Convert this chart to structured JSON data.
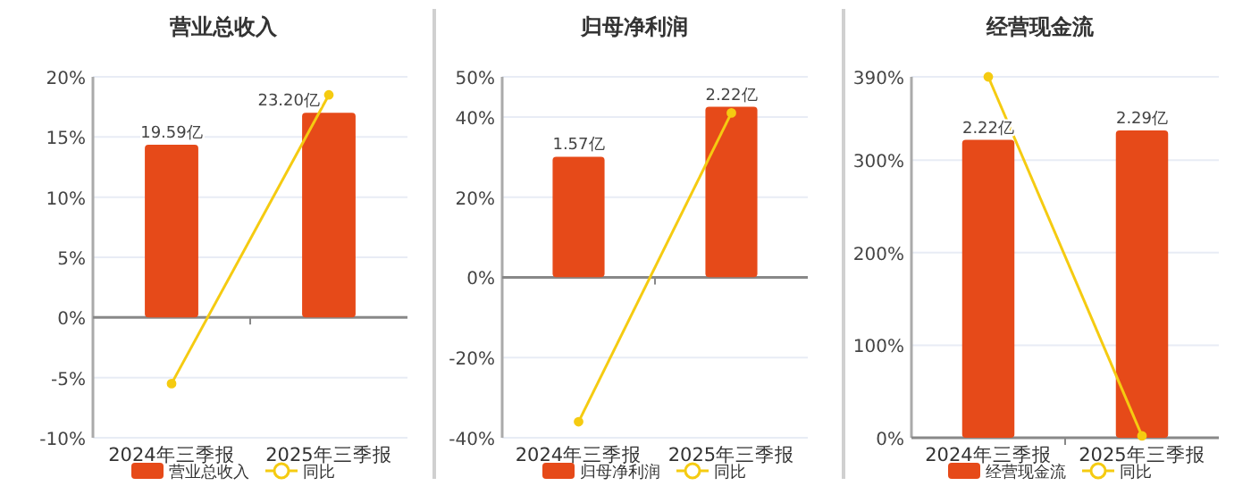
{
  "chart_data": [
    {
      "type": "bar",
      "title": "营业总收入",
      "categories": [
        "2024年三季报",
        "2025年三季报"
      ],
      "series": [
        {
          "name": "营业总收入",
          "axis": "y2",
          "color": "#e64a19",
          "values": [
            19.59,
            23.2
          ],
          "value_labels": [
            "19.59亿",
            "23.20亿"
          ]
        },
        {
          "name": "同比",
          "type": "line",
          "color": "#f5cb11",
          "values": [
            -5.5,
            18.5
          ],
          "marker": "circle"
        }
      ],
      "ylim": [
        -10,
        20
      ],
      "yticks": [
        {
          "value": -10,
          "label": "-10%"
        },
        {
          "value": -5,
          "label": "-5%"
        },
        {
          "value": 0,
          "label": "0%"
        },
        {
          "value": 5,
          "label": "5%"
        },
        {
          "value": 10,
          "label": "10%"
        },
        {
          "value": 15,
          "label": "15%"
        },
        {
          "value": 20,
          "label": "20%"
        }
      ],
      "y2lim": [
        -13.64,
        27.29
      ],
      "tick_labels": "xy",
      "grid": "y",
      "legend": "bottom"
    },
    {
      "type": "bar",
      "title": "归母净利润",
      "categories": [
        "2024年三季报",
        "2025年三季报"
      ],
      "series": [
        {
          "name": "归母净利润",
          "axis": "y2",
          "color": "#e64a19",
          "values": [
            1.57,
            2.22
          ],
          "value_labels": [
            "1.57亿",
            "2.22亿"
          ]
        },
        {
          "name": "同比",
          "type": "line",
          "color": "#f5cb11",
          "values": [
            -36,
            41
          ],
          "marker": "circle"
        }
      ],
      "ylim": [
        -40,
        50
      ],
      "yticks": [
        {
          "value": -40,
          "label": "-40%"
        },
        {
          "value": -20,
          "label": "-20%"
        },
        {
          "value": 0,
          "label": "0%"
        },
        {
          "value": 20,
          "label": "20%"
        },
        {
          "value": 40,
          "label": "40%"
        },
        {
          "value": 50,
          "label": "50%"
        }
      ],
      "y2lim": [
        -2.09,
        2.61
      ],
      "tick_labels": "xy",
      "grid": "y",
      "legend": "bottom"
    },
    {
      "type": "bar",
      "title": "经营现金流",
      "categories": [
        "2024年三季报",
        "2025年三季报"
      ],
      "series": [
        {
          "name": "经营现金流",
          "axis": "y2",
          "color": "#e64a19",
          "values": [
            2.22,
            2.29
          ],
          "value_labels": [
            "2.22亿",
            "2.29亿"
          ]
        },
        {
          "name": "同比",
          "type": "line",
          "color": "#f5cb11",
          "values": [
            390,
            2
          ],
          "marker": "circle"
        }
      ],
      "ylim": [
        0,
        390
      ],
      "yticks": [
        {
          "value": 0,
          "label": "0%"
        },
        {
          "value": 100,
          "label": "100%"
        },
        {
          "value": 200,
          "label": "200%"
        },
        {
          "value": 300,
          "label": "300%"
        },
        {
          "value": 390,
          "label": "390%"
        }
      ],
      "y2lim": [
        0,
        2.69
      ],
      "tick_labels": "xy",
      "grid": "y",
      "legend": "bottom"
    }
  ]
}
